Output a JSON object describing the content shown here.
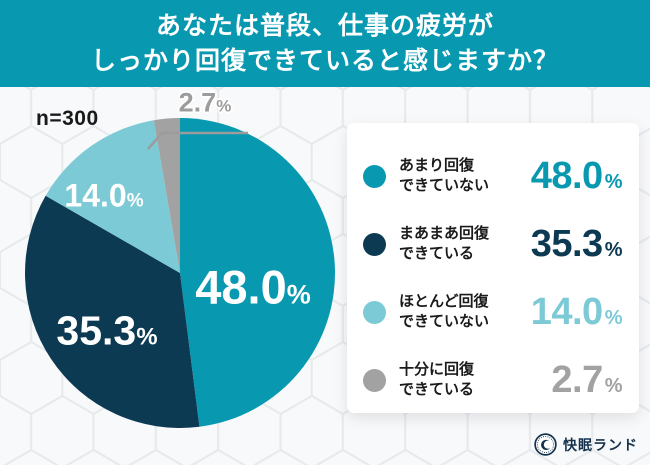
{
  "colors": {
    "accent": "#0899B1",
    "navy": "#0C3A52",
    "light_blue": "#7CCAD5",
    "gray": "#A2A2A2"
  },
  "header": {
    "line1": "あなたは普段、仕事の疲労が",
    "line2": "しっかり回復できていると感じますか？"
  },
  "ui": {
    "percent_sign": "%"
  },
  "chart_data": {
    "type": "pie",
    "title": "あなたは普段、仕事の疲労がしっかり回復できていると感じますか？",
    "sample_label": "n=300",
    "categories": [
      "あまり回復できていない",
      "まあまあ回復できている",
      "ほとんど回復できていない",
      "十分に回復できている"
    ],
    "values": [
      48.0,
      35.3,
      14.0,
      2.7
    ],
    "display_values": [
      "48.0",
      "35.3",
      "14.0",
      "2.7"
    ],
    "colors": [
      "#0899B1",
      "#0C3A52",
      "#7CCAD5",
      "#A2A2A2"
    ],
    "start_angle_deg": 0,
    "direction": "clockwise",
    "legend_position": "right"
  },
  "legend": {
    "items": [
      {
        "line1": "あまり回復",
        "line2": "できていない"
      },
      {
        "line1": "まあまあ回復",
        "line2": "できている"
      },
      {
        "line1": "ほとんど回復",
        "line2": "できていない"
      },
      {
        "line1": "十分に回復",
        "line2": "できている"
      }
    ]
  },
  "logo": {
    "text": "快眠ランド"
  }
}
